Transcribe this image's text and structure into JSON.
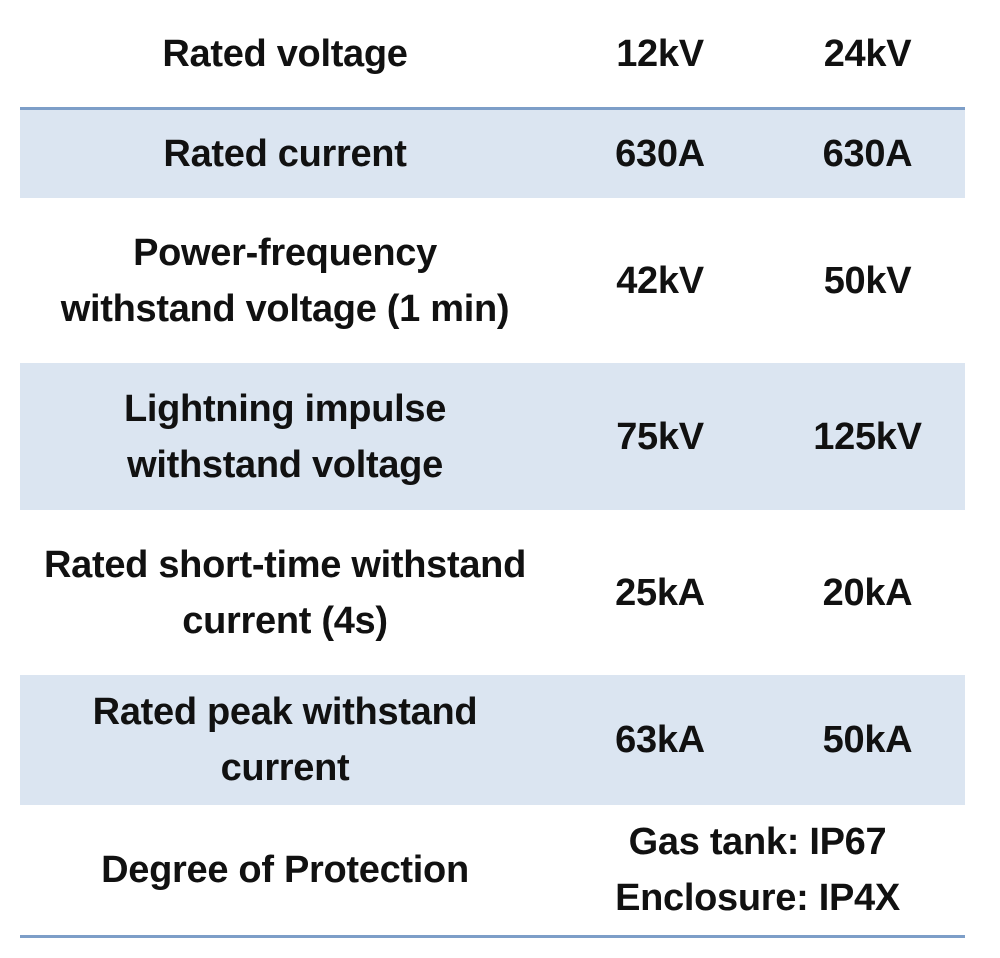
{
  "table": {
    "header": {
      "label": "Rated voltage",
      "v1": "12kV",
      "v2": "24kV"
    },
    "rows": [
      {
        "label": "Rated current",
        "v1": "630A",
        "v2": "630A"
      },
      {
        "label": "Power-frequency\nwithstand voltage (1 min)",
        "v1": "42kV",
        "v2": "50kV"
      },
      {
        "label": "Lightning impulse\nwithstand voltage",
        "v1": "75kV",
        "v2": "125kV"
      },
      {
        "label": "Rated short-time withstand\ncurrent (4s)",
        "v1": "25kA",
        "v2": "20kA"
      },
      {
        "label": "Rated peak withstand\ncurrent",
        "v1": "63kA",
        "v2": "50kA"
      },
      {
        "label": "Degree of Protection",
        "merged": "Gas tank: IP67\nEnclosure: IP4X"
      }
    ]
  }
}
